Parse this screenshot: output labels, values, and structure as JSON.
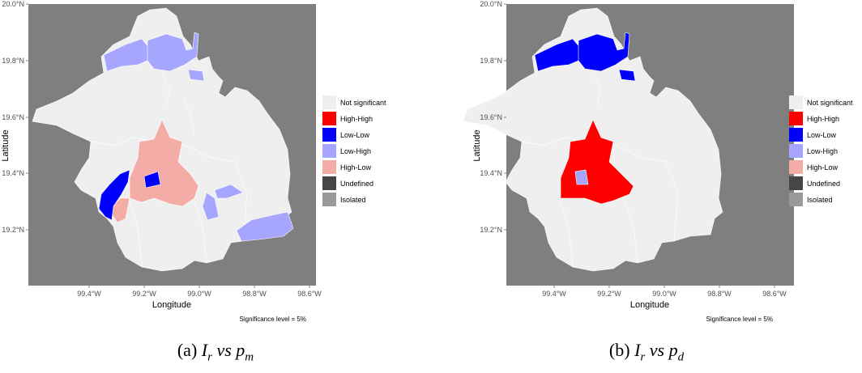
{
  "panels": [
    {
      "caption_prefix": "(a)",
      "caption_var1": "I",
      "caption_sub1": "r",
      "caption_vs": "vs",
      "caption_var2": "p",
      "caption_sub2": "m"
    },
    {
      "caption_prefix": "(b)",
      "caption_var1": "I",
      "caption_sub1": "r",
      "caption_vs": "vs",
      "caption_var2": "p",
      "caption_sub2": "d"
    }
  ],
  "axes": {
    "xlabel": "Longitude",
    "ylabel": "Latitude",
    "yticks": [
      "20.0°N",
      "19.8°N",
      "19.6°N",
      "19.4°N",
      "19.2°N"
    ],
    "xticks": [
      "99.4°W",
      "99.2°W",
      "99.0°W",
      "98.8°W",
      "98.6°W"
    ]
  },
  "legend": [
    {
      "label": "Not significant",
      "color": "#efefef"
    },
    {
      "label": "High-High",
      "color": "#ff0000"
    },
    {
      "label": "Low-Low",
      "color": "#0000ff"
    },
    {
      "label": "Low-High",
      "color": "#a6a6ff"
    },
    {
      "label": "High-Low",
      "color": "#f4aca6"
    },
    {
      "label": "Undefined",
      "color": "#464646"
    },
    {
      "label": "Isolated",
      "color": "#999999"
    }
  ],
  "note": "Significance level = 5%",
  "colors": {
    "panel_bg": "#7f7f7f",
    "region_default": "#efefef",
    "region_border": "#ffffff"
  }
}
